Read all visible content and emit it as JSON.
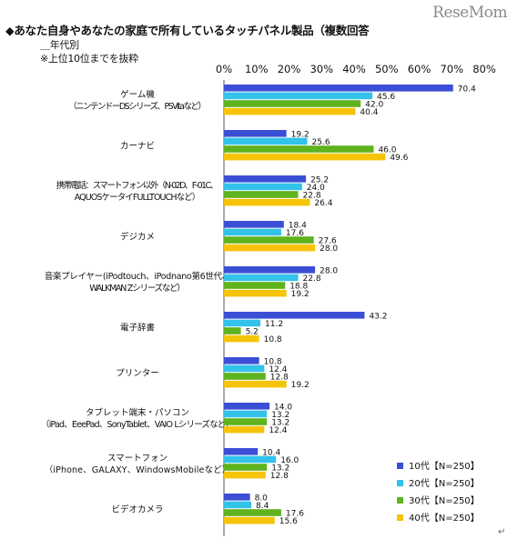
{
  "header": {
    "title": "◆あなた自身やあなたの家庭で所有しているタッチパネル製品（複数回答",
    "subtitle": "＿年代別",
    "note": "※上位10位までを抜粋",
    "watermark": "ReseMom",
    "return_mark": "↵"
  },
  "chart_data": {
    "type": "bar",
    "orientation": "horizontal",
    "xlim": [
      0,
      80
    ],
    "xticks": [
      "0%",
      "10%",
      "20%",
      "30%",
      "40%",
      "50%",
      "60%",
      "70%",
      "80%"
    ],
    "gridlines": false,
    "legend_position": "bottom-right",
    "categories": [
      [
        "ゲーム機",
        "（ニンテンドーDSシリーズ、PSVitaなど）"
      ],
      [
        "カーナビ"
      ],
      [
        "携帯電話：スマートフォン以外（N-02D、F-01C、",
        "AQUOSケータイFULLTOUCHなど）"
      ],
      [
        "デジカメ"
      ],
      [
        "音楽プレイヤー(iPodtouch、iPodnano第6世代、",
        "WALKMAN Zシリーズなど）"
      ],
      [
        "電子辞書"
      ],
      [
        "プリンター"
      ],
      [
        "タブレット端末・パソコン",
        "（iPad、EeePad、SonyTablet、VAIO Lシリーズなど）"
      ],
      [
        "スマートフォン",
        "（iPhone、GALAXY、WindowsMobileなど）"
      ],
      [
        "ビデオカメラ"
      ]
    ],
    "series": [
      {
        "name": "10代【N=250】",
        "color": "#3b4fd6",
        "values": [
          70.4,
          19.2,
          25.2,
          18.4,
          28.0,
          43.2,
          10.8,
          14.0,
          10.4,
          8.0
        ],
        "labels": [
          "70.4",
          "19.2",
          "25.2",
          "18.4",
          "28.0",
          "43.2",
          "10.8",
          "14.0",
          "10.4",
          "8.0"
        ]
      },
      {
        "name": "20代【N=250】",
        "color": "#33c2ea",
        "values": [
          45.6,
          25.6,
          24.0,
          17.6,
          22.8,
          11.2,
          12.4,
          13.2,
          16.0,
          8.4
        ],
        "labels": [
          "45.6",
          "25.6",
          "24.0",
          "17.6",
          "22.8",
          "11.2",
          "12.4",
          "13.2",
          "16.0",
          "8.4"
        ]
      },
      {
        "name": "30代【N=250】",
        "color": "#5fb31e",
        "values": [
          42.0,
          46.0,
          22.8,
          27.6,
          18.8,
          5.2,
          12.8,
          13.2,
          13.2,
          17.6
        ],
        "labels": [
          "42.0",
          "46.0",
          "22.8",
          "27.6",
          "18.8",
          "5.2",
          "12.8",
          "13.2",
          "13.2",
          "17.6"
        ]
      },
      {
        "name": "40代【N=250】",
        "color": "#f5c40a",
        "values": [
          40.4,
          49.6,
          26.4,
          28.0,
          19.2,
          10.8,
          19.2,
          12.4,
          12.8,
          15.6
        ],
        "labels": [
          "40.4",
          "49.6",
          "26.4",
          "28.0",
          "19.2",
          "10.8",
          "19.2",
          "12.4",
          "12.8",
          "15.6"
        ]
      }
    ]
  }
}
